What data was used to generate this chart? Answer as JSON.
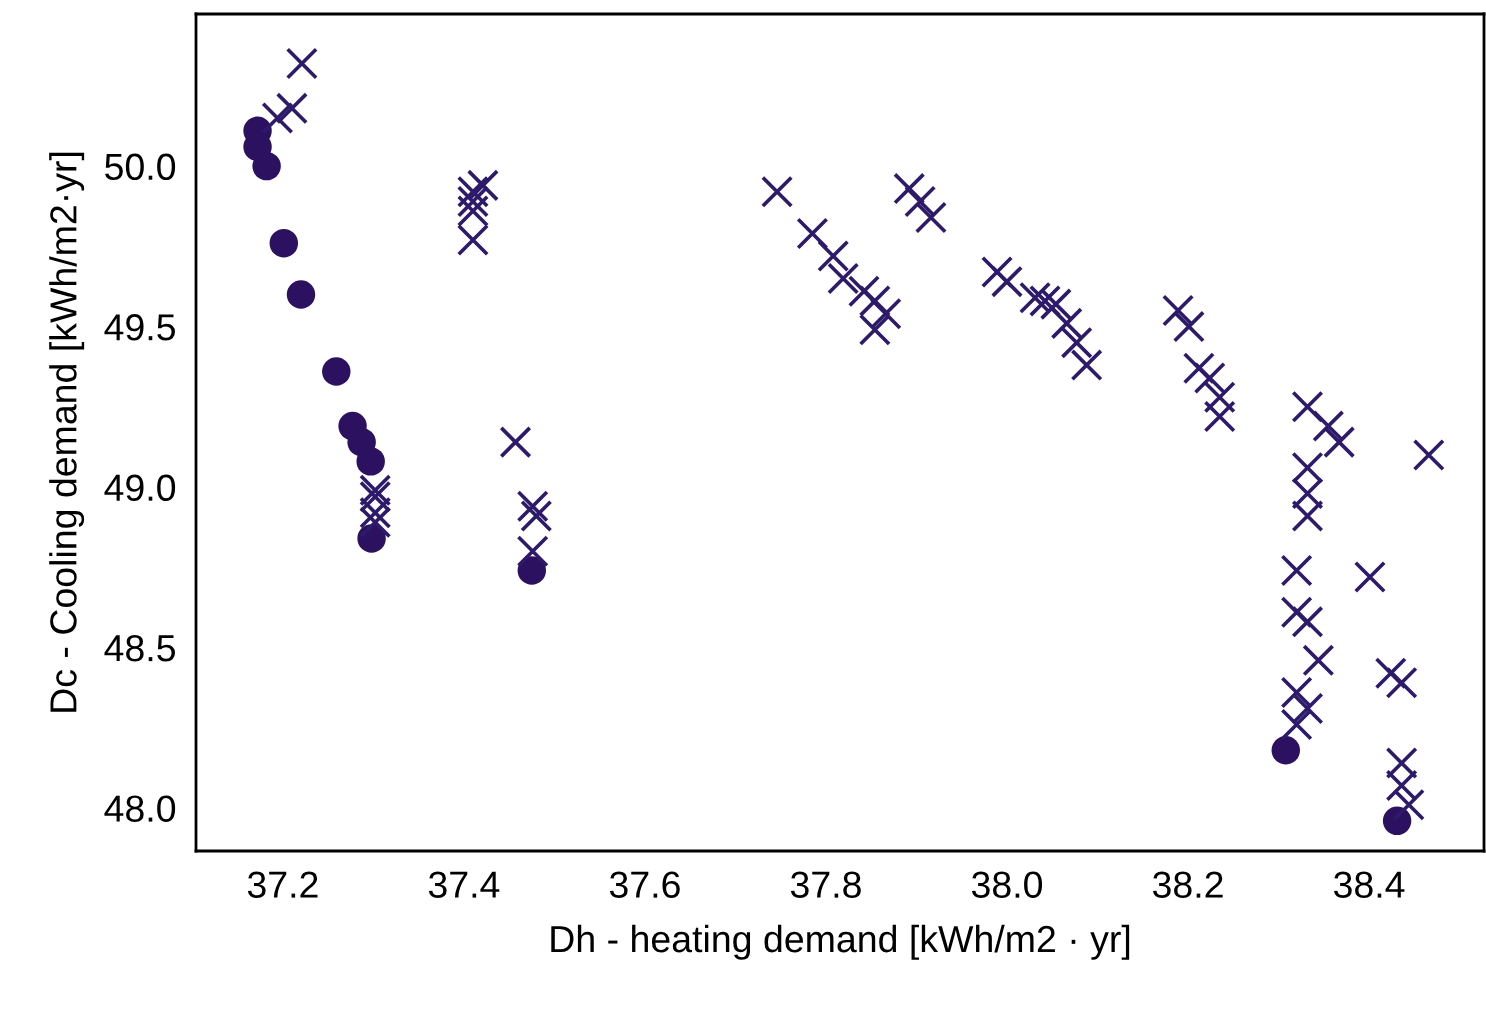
{
  "chart_data": {
    "type": "scatter",
    "xlabel": "Dh - heating demand [kWh/m2 · yr]",
    "ylabel": "Dc - Cooling demand [kWh/m2·yr]",
    "xlim": [
      37.104,
      38.527
    ],
    "ylim": [
      47.866,
      50.474
    ],
    "xticks": [
      {
        "value": 37.2,
        "label": "37.2"
      },
      {
        "value": 37.4,
        "label": "37.4"
      },
      {
        "value": 37.6,
        "label": "37.6"
      },
      {
        "value": 37.8,
        "label": "37.8"
      },
      {
        "value": 38.0,
        "label": "38.0"
      },
      {
        "value": 38.2,
        "label": "38.2"
      },
      {
        "value": 38.4,
        "label": "38.4"
      }
    ],
    "yticks": [
      {
        "value": 48.0,
        "label": "48.0"
      },
      {
        "value": 48.5,
        "label": "48.5"
      },
      {
        "value": 49.0,
        "label": "49.0"
      },
      {
        "value": 49.5,
        "label": "49.5"
      },
      {
        "value": 50.0,
        "label": "50.0"
      }
    ],
    "grid": false,
    "legend": false,
    "series": [
      {
        "color": "#2c1160",
        "marker": "circle",
        "x": [
          37.172,
          37.172,
          37.182,
          37.201,
          37.22,
          37.259,
          37.277,
          37.287,
          37.297,
          37.298,
          37.475,
          38.308,
          38.431
        ],
        "values": [
          50.11,
          50.06,
          50.0,
          49.76,
          49.6,
          49.36,
          49.19,
          49.14,
          49.08,
          48.84,
          48.74,
          48.18,
          47.96
        ]
      },
      {
        "color": "#2e1a6a",
        "marker": "cross",
        "x": [
          37.221,
          37.21,
          37.194,
          37.421,
          37.41,
          37.41,
          37.41,
          37.41,
          37.457,
          37.476,
          37.48,
          37.476,
          37.302,
          37.302,
          37.302,
          37.302,
          37.746,
          37.785,
          37.808,
          37.819,
          37.842,
          37.854,
          37.866,
          37.854,
          37.892,
          37.904,
          37.916,
          37.989,
          38.0,
          38.031,
          38.042,
          38.054,
          38.066,
          38.077,
          38.088,
          38.189,
          38.201,
          38.212,
          38.224,
          38.235,
          38.235,
          38.332,
          38.355,
          38.367,
          38.466,
          38.332,
          38.332,
          38.332,
          38.32,
          38.401,
          38.32,
          38.332,
          38.344,
          38.424,
          38.436,
          38.32,
          38.332,
          38.32,
          38.436,
          38.436,
          38.444
        ],
        "values": [
          50.32,
          50.18,
          50.15,
          49.94,
          49.92,
          49.89,
          49.86,
          49.77,
          49.14,
          48.94,
          48.91,
          48.8,
          48.99,
          48.97,
          48.92,
          48.89,
          49.92,
          49.79,
          49.72,
          49.65,
          49.61,
          49.58,
          49.54,
          49.49,
          49.93,
          49.89,
          49.84,
          49.67,
          49.64,
          49.59,
          49.58,
          49.57,
          49.51,
          49.45,
          49.38,
          49.55,
          49.5,
          49.37,
          49.34,
          49.28,
          49.22,
          49.25,
          49.19,
          49.14,
          49.1,
          49.06,
          48.98,
          48.91,
          48.74,
          48.72,
          48.61,
          48.58,
          48.46,
          48.42,
          48.39,
          48.36,
          48.31,
          48.26,
          48.14,
          48.07,
          48.01
        ]
      }
    ]
  }
}
